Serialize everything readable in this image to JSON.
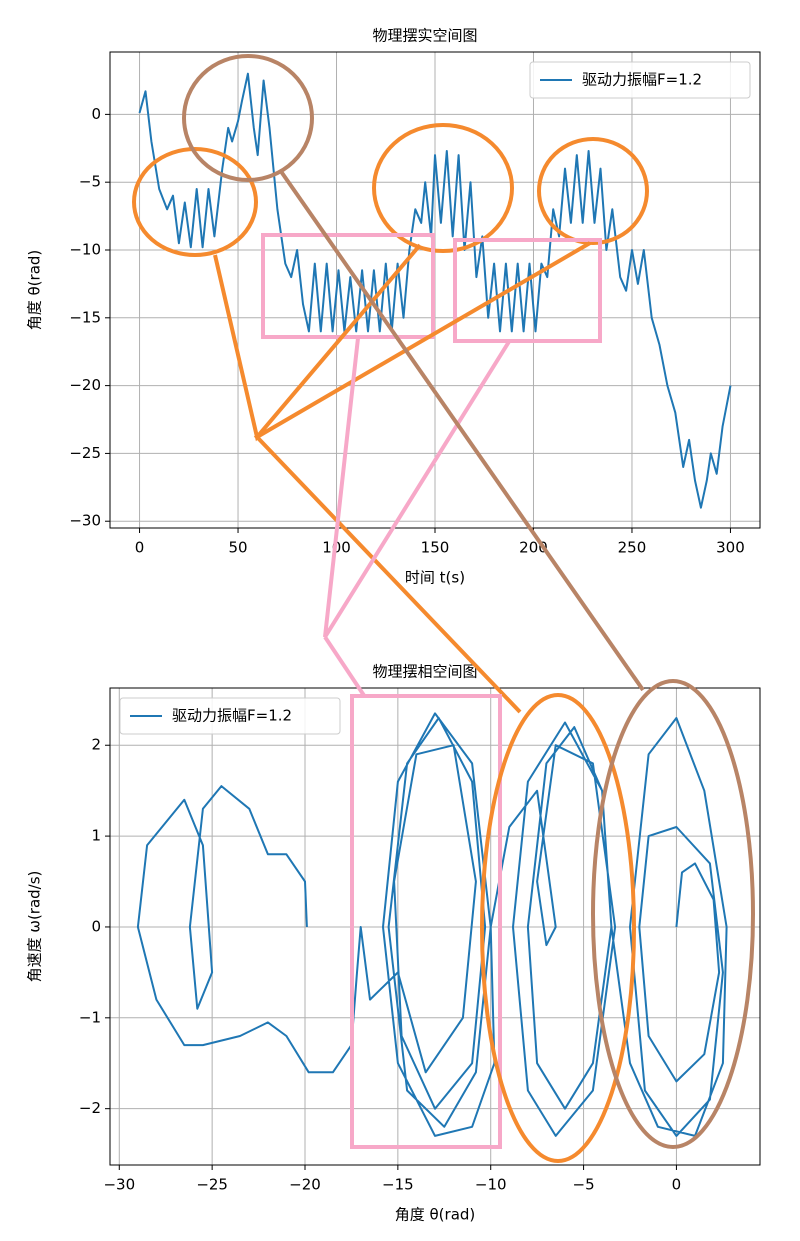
{
  "chart_data": [
    {
      "type": "line",
      "title": "物理摆实空间图",
      "xlabel": "时间 t(s)",
      "ylabel": "角度 θ(rad)",
      "series": [
        {
          "name": "驱动力振幅F=1.2",
          "color": "#1f77b4",
          "x": [
            0,
            3,
            6,
            10,
            14,
            17,
            20,
            23,
            26,
            29,
            32,
            35,
            38,
            42,
            45,
            47,
            50,
            52,
            55,
            58,
            60,
            63,
            66,
            70,
            74,
            77,
            80,
            83,
            86,
            89,
            92,
            95,
            98,
            101,
            104,
            107,
            110,
            113,
            116,
            119,
            122,
            125,
            128,
            131,
            134,
            137,
            140,
            143,
            145,
            148,
            150,
            153,
            156,
            159,
            162,
            165,
            168,
            171,
            174,
            177,
            180,
            183,
            186,
            189,
            192,
            195,
            198,
            201,
            204,
            207,
            210,
            213,
            216,
            219,
            222,
            225,
            228,
            231,
            234,
            237,
            240,
            244,
            247,
            250,
            253,
            256,
            260,
            264,
            268,
            272,
            276,
            279,
            282,
            285,
            288,
            290,
            293,
            296,
            300
          ],
          "values": [
            0.1,
            1.7,
            -2,
            -5.5,
            -7,
            -6,
            -9.5,
            -6.5,
            -9.8,
            -5.5,
            -9.8,
            -5.5,
            -9,
            -4,
            -1,
            -2,
            -0.5,
            1,
            3,
            -1,
            -3,
            2.5,
            -1,
            -7,
            -11,
            -12,
            -10,
            -14,
            -16,
            -11,
            -16,
            -11,
            -16,
            -11.5,
            -16,
            -12,
            -16,
            -11.5,
            -16,
            -11.5,
            -16,
            -11,
            -16,
            -11,
            -15,
            -10,
            -7,
            -8,
            -5,
            -9,
            -3,
            -8,
            -2.7,
            -9,
            -3,
            -10,
            -5,
            -12,
            -9,
            -15,
            -11,
            -16,
            -11,
            -16,
            -11,
            -16,
            -11,
            -16,
            -11,
            -12,
            -7,
            -9,
            -4,
            -8,
            -3,
            -8,
            -2.7,
            -8,
            -4,
            -10,
            -7,
            -12,
            -13,
            -10,
            -12.5,
            -10,
            -15,
            -17,
            -20,
            -22,
            -26,
            -24,
            -27,
            -29,
            -27,
            -25,
            -26.5,
            -23,
            -20
          ]
        }
      ],
      "xlim": [
        -15,
        315
      ],
      "ylim": [
        -30.5,
        4.6
      ],
      "xticks": [
        0,
        50,
        100,
        150,
        200,
        250,
        300
      ],
      "yticks": [
        0,
        {
          "value": -5,
          "label": "−5"
        },
        {
          "value": -10,
          "label": "−10"
        },
        {
          "value": -15,
          "label": "−15"
        },
        {
          "value": -20,
          "label": "−20"
        },
        {
          "value": -25,
          "label": "−25"
        },
        {
          "value": -30,
          "label": "−30"
        }
      ],
      "grid": true,
      "legend": "upper right"
    },
    {
      "type": "line",
      "title": "物理摆相空间图",
      "xlabel": "角度 θ(rad)",
      "ylabel": "角速度 ω(rad/s)",
      "series": [
        {
          "name": "驱动力振幅F=1.2",
          "color": "#1f77b4",
          "x": [
            0,
            0.3,
            1,
            2,
            2.3,
            1.5,
            0,
            -1.5,
            -2,
            -1.5,
            0,
            1.8,
            2.5,
            1.8,
            0,
            -1.7,
            -2.5,
            -1.5,
            0,
            1.5,
            2.7,
            2.5,
            1,
            -1,
            -2.5,
            -3.5,
            -4,
            -5.5,
            -7,
            -8,
            -7.5,
            -6,
            -4.5,
            -3.5,
            -4,
            -6,
            -8,
            -8.8,
            -8,
            -6.5,
            -4.5,
            -3.3,
            -4.5,
            -6.5,
            -7.5,
            -7,
            -6.5,
            -7.5,
            -9,
            -10,
            -9.8,
            -11,
            -13,
            -15,
            -15.8,
            -15,
            -13,
            -11,
            -10,
            -10.8,
            -12.5,
            -14.5,
            -15.5,
            -14.5,
            -12.8,
            -11,
            -10.3,
            -11,
            -13,
            -14.8,
            -15.2,
            -14,
            -12,
            -10.8,
            -11.5,
            -13.5,
            -15,
            -16.5,
            -17,
            -17.2,
            -17.5,
            -18.5,
            -19.8,
            -21,
            -22,
            -23.5,
            -25.5,
            -26.5,
            -28,
            -29,
            -28.5,
            -26.5,
            -25.5,
            -25,
            -25.8,
            -26.2,
            -25.5,
            -24.5,
            -23,
            -22,
            -21,
            -20,
            -19.9
          ],
          "values": [
            0,
            0.6,
            0.7,
            0.3,
            -0.5,
            -1.4,
            -1.7,
            -1.2,
            0,
            1,
            1.1,
            0.7,
            -0.5,
            -1.9,
            -2.3,
            -1.8,
            0,
            1.9,
            2.3,
            1.5,
            0,
            -1.5,
            -2.3,
            -2.2,
            -1.5,
            0,
            1.5,
            2.2,
            1.8,
            0,
            -1.5,
            -2,
            -1.5,
            0,
            1.5,
            2.25,
            1.6,
            0,
            -1.8,
            -2.3,
            -1.8,
            0,
            1.8,
            2,
            0.5,
            -0.2,
            0,
            1.5,
            1.1,
            0,
            -1.5,
            -2.2,
            -2.3,
            -1.5,
            0,
            1.6,
            2.35,
            1.8,
            0,
            -1.6,
            -2.2,
            -1.8,
            0,
            1.8,
            2.3,
            1.6,
            0,
            -1.5,
            -2,
            -1.2,
            0.5,
            1.9,
            2,
            0.5,
            -1,
            -1.6,
            -0.5,
            -0.8,
            0,
            -0.5,
            -1.3,
            -1.6,
            -1.6,
            -1.2,
            -1.05,
            -1.2,
            -1.3,
            -1.3,
            -0.8,
            0,
            0.9,
            1.4,
            0.9,
            -0.5,
            -0.9,
            0,
            1.3,
            1.55,
            1.3,
            0.8,
            0.8,
            0.5,
            0
          ]
        }
      ],
      "xlim": [
        -30.5,
        4.5
      ],
      "ylim": [
        -2.62,
        2.63
      ],
      "xticks": [
        {
          "value": -30,
          "label": "−30"
        },
        {
          "value": -25,
          "label": "−25"
        },
        {
          "value": -20,
          "label": "−20"
        },
        {
          "value": -15,
          "label": "−15"
        },
        {
          "value": -10,
          "label": "−10"
        },
        {
          "value": -5,
          "label": "−5"
        },
        0
      ],
      "yticks": [
        {
          "value": -2,
          "label": "−2"
        },
        {
          "value": -1,
          "label": "−1"
        },
        0,
        1,
        2
      ],
      "grid": true,
      "legend": "upper left"
    }
  ]
}
